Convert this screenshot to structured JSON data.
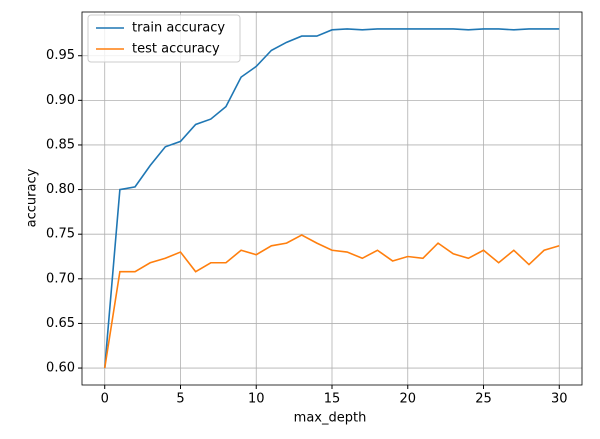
{
  "chart_data": {
    "type": "line",
    "xlabel": "max_depth",
    "ylabel": "accuracy",
    "x": [
      0,
      1,
      2,
      3,
      4,
      5,
      6,
      7,
      8,
      9,
      10,
      11,
      12,
      13,
      14,
      15,
      16,
      17,
      18,
      19,
      20,
      21,
      22,
      23,
      24,
      25,
      26,
      27,
      28,
      29,
      30
    ],
    "series": [
      {
        "name": "train accuracy",
        "color": "#1f77b4",
        "values": [
          0.6,
          0.8,
          0.803,
          0.827,
          0.848,
          0.854,
          0.873,
          0.879,
          0.893,
          0.926,
          0.938,
          0.956,
          0.965,
          0.972,
          0.972,
          0.979,
          0.98,
          0.979,
          0.98,
          0.98,
          0.98,
          0.98,
          0.98,
          0.98,
          0.979,
          0.98,
          0.98,
          0.979,
          0.98,
          0.98,
          0.98
        ]
      },
      {
        "name": "test accuracy",
        "color": "#ff7f0e",
        "values": [
          0.6,
          0.708,
          0.708,
          0.718,
          0.723,
          0.73,
          0.708,
          0.718,
          0.718,
          0.732,
          0.727,
          0.737,
          0.74,
          0.749,
          0.74,
          0.732,
          0.73,
          0.723,
          0.732,
          0.72,
          0.725,
          0.723,
          0.74,
          0.728,
          0.723,
          0.732,
          0.718,
          0.732,
          0.716,
          0.732,
          0.737
        ]
      }
    ],
    "xlim": [
      -1.5,
      31.5
    ],
    "ylim": [
      0.581,
      0.999
    ],
    "xticks": [
      0,
      5,
      10,
      15,
      20,
      25,
      30
    ],
    "yticks": [
      {
        "value": 0.6,
        "label": "0.60"
      },
      {
        "value": 0.65,
        "label": "0.65"
      },
      {
        "value": 0.7,
        "label": "0.70"
      },
      {
        "value": 0.75,
        "label": "0.75"
      },
      {
        "value": 0.8,
        "label": "0.80"
      },
      {
        "value": 0.85,
        "label": "0.85"
      },
      {
        "value": 0.9,
        "label": "0.90"
      },
      {
        "value": 0.95,
        "label": "0.95"
      }
    ],
    "grid": true,
    "legend": "upper-left"
  }
}
